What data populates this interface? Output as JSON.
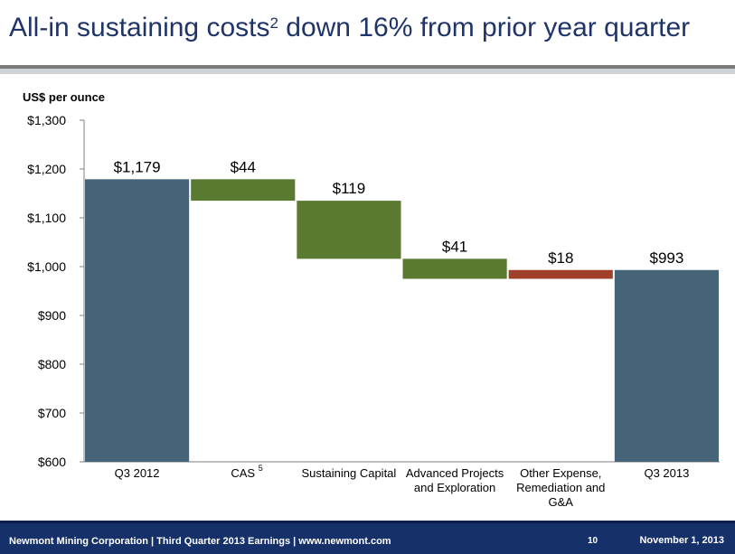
{
  "slide": {
    "title_main": "All-in sustaining costs",
    "title_sup": "2",
    "title_rest": " down 16% from prior year quarter"
  },
  "footer": {
    "left_text": "Newmont Mining Corporation  |  Third Quarter 2013 Earnings  |  www.newmont.com",
    "page_number": "10",
    "date": "November 1, 2013"
  },
  "chart_data": {
    "type": "waterfall",
    "unit_label": "US$ per ounce",
    "ylim": [
      600,
      1300
    ],
    "yticks": [
      600,
      700,
      800,
      900,
      1000,
      1100,
      1200,
      1300
    ],
    "ytick_labels": [
      "$600",
      "$700",
      "$800",
      "$900",
      "$1,000",
      "$1,100",
      "$1,200",
      "$1,300"
    ],
    "colors": {
      "total": "#466478",
      "decrease": "#5a7a32",
      "other": "#a0402a"
    },
    "bars": [
      {
        "category": [
          "Q3 2012"
        ],
        "sup": "",
        "kind": "total",
        "start": 0,
        "end": 1179,
        "label": "$1,179"
      },
      {
        "category": [
          "CAS"
        ],
        "sup": "5",
        "kind": "decrease",
        "start": 1179,
        "end": 1135,
        "label": "$44"
      },
      {
        "category": [
          "Sustaining Capital"
        ],
        "sup": "",
        "kind": "decrease",
        "start": 1135,
        "end": 1016,
        "label": "$119"
      },
      {
        "category": [
          "Advanced Projects",
          "and Exploration"
        ],
        "sup": "",
        "kind": "decrease",
        "start": 1016,
        "end": 975,
        "label": "$41"
      },
      {
        "category": [
          "Other Expense,",
          "Remediation and",
          "G&A"
        ],
        "sup": "",
        "kind": "other",
        "start": 975,
        "end": 993,
        "label": "$18"
      },
      {
        "category": [
          "Q3 2013"
        ],
        "sup": "",
        "kind": "total",
        "start": 0,
        "end": 993,
        "label": "$993"
      }
    ]
  }
}
